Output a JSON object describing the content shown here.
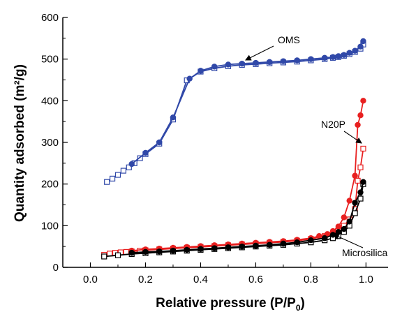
{
  "chart_data": {
    "type": "line",
    "xlabel": "Relative pressure (P/P",
    "xlabel_sub": "0",
    "xlabel_end": ")",
    "ylabel": "Quantity adsorbed (m²/g)",
    "xlim": [
      -0.1,
      1.08
    ],
    "ylim": [
      0,
      600
    ],
    "xticks": [
      "0.0",
      "0.2",
      "0.4",
      "0.6",
      "0.8",
      "1.0"
    ],
    "yticks": [
      "0",
      "100",
      "200",
      "300",
      "400",
      "500",
      "600"
    ],
    "grid": false,
    "annotations": [
      {
        "text": "OMS",
        "series": "oms"
      },
      {
        "text": "N20P",
        "series": "n20p"
      },
      {
        "text": "Microsilica",
        "series": "micro"
      }
    ],
    "series": [
      {
        "key": "oms",
        "color": "#3048a8",
        "adsorption": {
          "x": [
            0.06,
            0.08,
            0.1,
            0.12,
            0.14,
            0.16,
            0.18,
            0.2,
            0.25,
            0.3,
            0.35,
            0.4,
            0.45,
            0.5,
            0.55,
            0.6,
            0.65,
            0.7,
            0.75,
            0.8,
            0.85,
            0.88,
            0.9,
            0.92,
            0.94,
            0.96,
            0.98,
            0.99
          ],
          "y": [
            205,
            213,
            222,
            232,
            240,
            250,
            262,
            272,
            297,
            355,
            449,
            470,
            478,
            483,
            486,
            488,
            490,
            492,
            494,
            497,
            500,
            503,
            505,
            508,
            512,
            517,
            525,
            535
          ]
        },
        "desorption": {
          "x": [
            0.15,
            0.2,
            0.25,
            0.3,
            0.36,
            0.4,
            0.45,
            0.5,
            0.55,
            0.6,
            0.65,
            0.7,
            0.75,
            0.8,
            0.85,
            0.88,
            0.9,
            0.92,
            0.94,
            0.96,
            0.98,
            0.99
          ],
          "y": [
            248,
            275,
            300,
            360,
            453,
            472,
            482,
            487,
            489,
            491,
            493,
            495,
            497,
            500,
            503,
            505,
            507,
            510,
            515,
            520,
            530,
            543
          ]
        }
      },
      {
        "key": "n20p",
        "color": "#e82020",
        "adsorption": {
          "x": [
            0.05,
            0.07,
            0.09,
            0.11,
            0.13,
            0.15,
            0.18,
            0.2,
            0.25,
            0.3,
            0.35,
            0.4,
            0.45,
            0.5,
            0.55,
            0.6,
            0.65,
            0.7,
            0.75,
            0.8,
            0.85,
            0.88,
            0.9,
            0.92,
            0.94,
            0.96,
            0.97,
            0.98,
            0.99
          ],
          "y": [
            30,
            33,
            35,
            36,
            37,
            38,
            40,
            41,
            43,
            45,
            47,
            49,
            51,
            53,
            55,
            57,
            59,
            61,
            64,
            68,
            75,
            82,
            90,
            100,
            115,
            140,
            208,
            240,
            285
          ]
        },
        "desorption": {
          "x": [
            0.15,
            0.2,
            0.25,
            0.3,
            0.35,
            0.4,
            0.45,
            0.5,
            0.55,
            0.6,
            0.65,
            0.7,
            0.75,
            0.8,
            0.83,
            0.86,
            0.88,
            0.9,
            0.92,
            0.94,
            0.96,
            0.97,
            0.98,
            0.99
          ],
          "y": [
            40,
            43,
            45,
            47,
            49,
            51,
            53,
            55,
            57,
            59,
            61,
            63,
            66,
            70,
            75,
            80,
            87,
            98,
            120,
            160,
            220,
            342,
            365,
            400
          ]
        }
      },
      {
        "key": "micro",
        "color": "#000000",
        "adsorption": {
          "x": [
            0.05,
            0.1,
            0.15,
            0.2,
            0.25,
            0.3,
            0.35,
            0.4,
            0.45,
            0.5,
            0.55,
            0.6,
            0.65,
            0.7,
            0.75,
            0.8,
            0.85,
            0.88,
            0.9,
            0.92,
            0.94,
            0.96,
            0.98,
            0.99
          ],
          "y": [
            26,
            29,
            32,
            34,
            36,
            38,
            40,
            42,
            44,
            46,
            48,
            50,
            52,
            54,
            57,
            60,
            65,
            70,
            75,
            85,
            100,
            130,
            165,
            200
          ]
        },
        "desorption": {
          "x": [
            0.15,
            0.2,
            0.25,
            0.3,
            0.35,
            0.4,
            0.45,
            0.5,
            0.55,
            0.6,
            0.65,
            0.7,
            0.75,
            0.8,
            0.85,
            0.88,
            0.9,
            0.92,
            0.94,
            0.96,
            0.98,
            0.99
          ],
          "y": [
            35,
            37,
            38,
            40,
            42,
            44,
            46,
            48,
            50,
            52,
            54,
            57,
            60,
            65,
            70,
            78,
            85,
            92,
            110,
            155,
            180,
            205
          ]
        }
      }
    ]
  }
}
